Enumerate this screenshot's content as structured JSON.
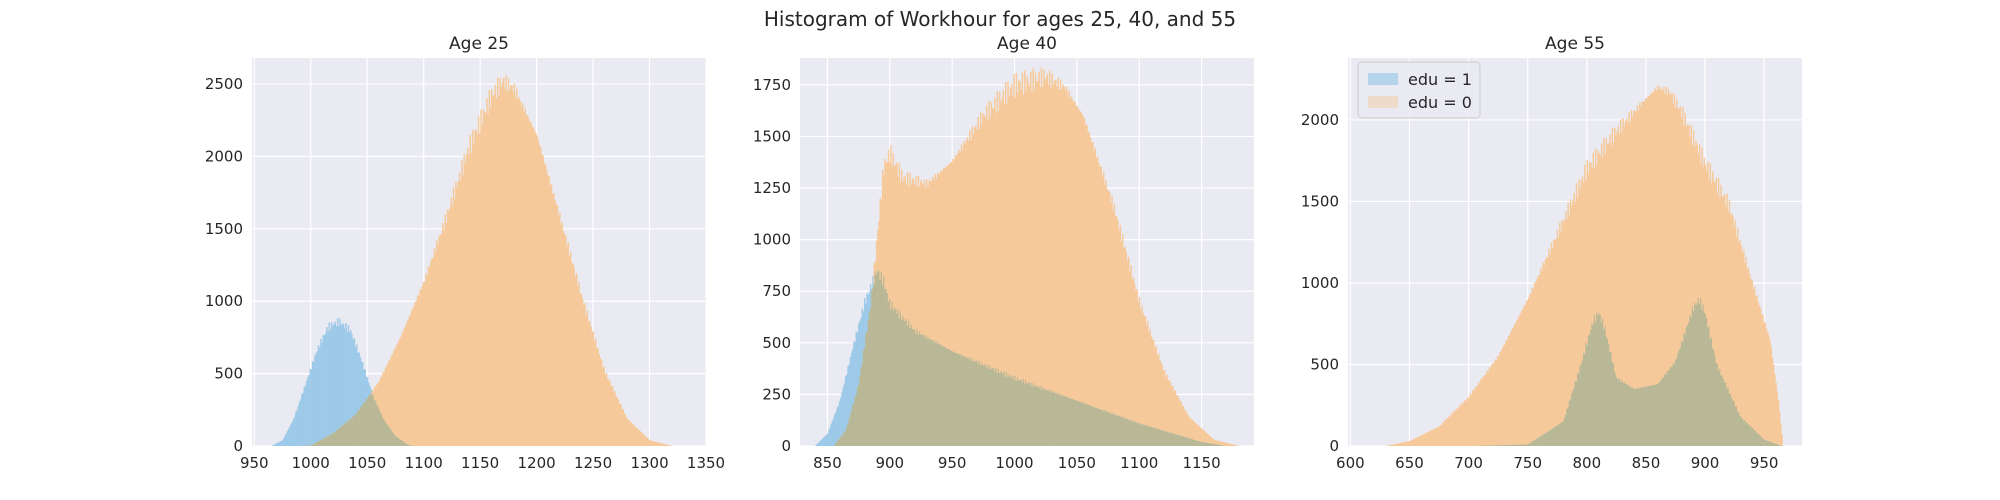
{
  "figure": {
    "title": "Histogram of Workhour for ages 25, 40, and 55"
  },
  "colors": {
    "background": "#eaeaf2",
    "grid": "#ffffff",
    "edu1_fill": "#9ecae9",
    "edu0_fill": "#f6c99a",
    "overlap": "#b9b896"
  },
  "legend": {
    "location": "upper left of third panel",
    "entries": [
      "edu = 1",
      "edu = 0"
    ]
  },
  "chart_data": [
    {
      "type": "histogram",
      "title": "Age 25",
      "xlabel": "",
      "ylabel": "",
      "xlim": [
        948,
        1350
      ],
      "ylim": [
        0,
        2680
      ],
      "xticks": [
        950,
        1000,
        1050,
        1100,
        1150,
        1200,
        1250,
        1300,
        1350
      ],
      "yticks": [
        0,
        500,
        1000,
        1500,
        2000,
        2500
      ],
      "grid": true,
      "series": [
        {
          "label": "edu = 1",
          "x": [
            965,
            975,
            985,
            995,
            1005,
            1015,
            1025,
            1035,
            1045,
            1055,
            1065,
            1075,
            1085,
            1090
          ],
          "y": [
            0,
            40,
            190,
            420,
            650,
            820,
            860,
            800,
            590,
            350,
            180,
            70,
            15,
            0
          ]
        },
        {
          "label": "edu = 0",
          "x": [
            990,
            1000,
            1020,
            1040,
            1060,
            1080,
            1100,
            1120,
            1140,
            1160,
            1170,
            1180,
            1200,
            1220,
            1240,
            1260,
            1280,
            1300,
            1320
          ],
          "y": [
            0,
            5,
            90,
            220,
            440,
            760,
            1130,
            1580,
            2060,
            2420,
            2520,
            2470,
            2150,
            1600,
            1030,
            520,
            190,
            40,
            0
          ]
        }
      ]
    },
    {
      "type": "histogram",
      "title": "Age 40",
      "xlabel": "",
      "ylabel": "",
      "xlim": [
        828,
        1192
      ],
      "ylim": [
        0,
        1880
      ],
      "xticks": [
        850,
        900,
        950,
        1000,
        1050,
        1100,
        1150
      ],
      "yticks": [
        0,
        250,
        500,
        750,
        1000,
        1250,
        1500,
        1750
      ],
      "grid": true,
      "series": [
        {
          "label": "edu = 1",
          "x": [
            840,
            850,
            860,
            870,
            880,
            890,
            895,
            900,
            920,
            950,
            1000,
            1050,
            1100,
            1150,
            1170
          ],
          "y": [
            0,
            60,
            220,
            470,
            700,
            850,
            800,
            690,
            560,
            460,
            330,
            220,
            110,
            20,
            0
          ]
        },
        {
          "label": "edu = 0",
          "x": [
            855,
            865,
            875,
            885,
            895,
            900,
            910,
            930,
            950,
            975,
            1000,
            1025,
            1040,
            1055,
            1080,
            1100,
            1120,
            1140,
            1160,
            1180
          ],
          "y": [
            0,
            80,
            300,
            700,
            1350,
            1420,
            1300,
            1270,
            1380,
            1600,
            1750,
            1790,
            1740,
            1600,
            1150,
            700,
            360,
            140,
            30,
            0
          ]
        }
      ]
    },
    {
      "type": "histogram",
      "title": "Age 55",
      "xlabel": "",
      "ylabel": "",
      "xlim": [
        598,
        982
      ],
      "ylim": [
        0,
        2380
      ],
      "xticks": [
        600,
        650,
        700,
        750,
        800,
        850,
        900,
        950
      ],
      "yticks": [
        0,
        500,
        1000,
        1500,
        2000
      ],
      "grid": true,
      "series": [
        {
          "label": "edu = 1",
          "x": [
            700,
            750,
            780,
            795,
            805,
            810,
            815,
            825,
            840,
            860,
            875,
            885,
            890,
            895,
            900,
            910,
            930,
            950,
            965
          ],
          "y": [
            0,
            10,
            150,
            500,
            760,
            820,
            730,
            420,
            350,
            380,
            520,
            740,
            850,
            900,
            820,
            500,
            180,
            40,
            0
          ]
        },
        {
          "label": "edu = 0",
          "x": [
            630,
            650,
            675,
            700,
            725,
            750,
            775,
            800,
            825,
            850,
            860,
            870,
            880,
            900,
            920,
            940,
            955,
            962,
            966
          ],
          "y": [
            0,
            30,
            120,
            300,
            550,
            900,
            1300,
            1700,
            1930,
            2130,
            2200,
            2170,
            2050,
            1730,
            1480,
            1000,
            650,
            280,
            0
          ]
        }
      ]
    }
  ]
}
